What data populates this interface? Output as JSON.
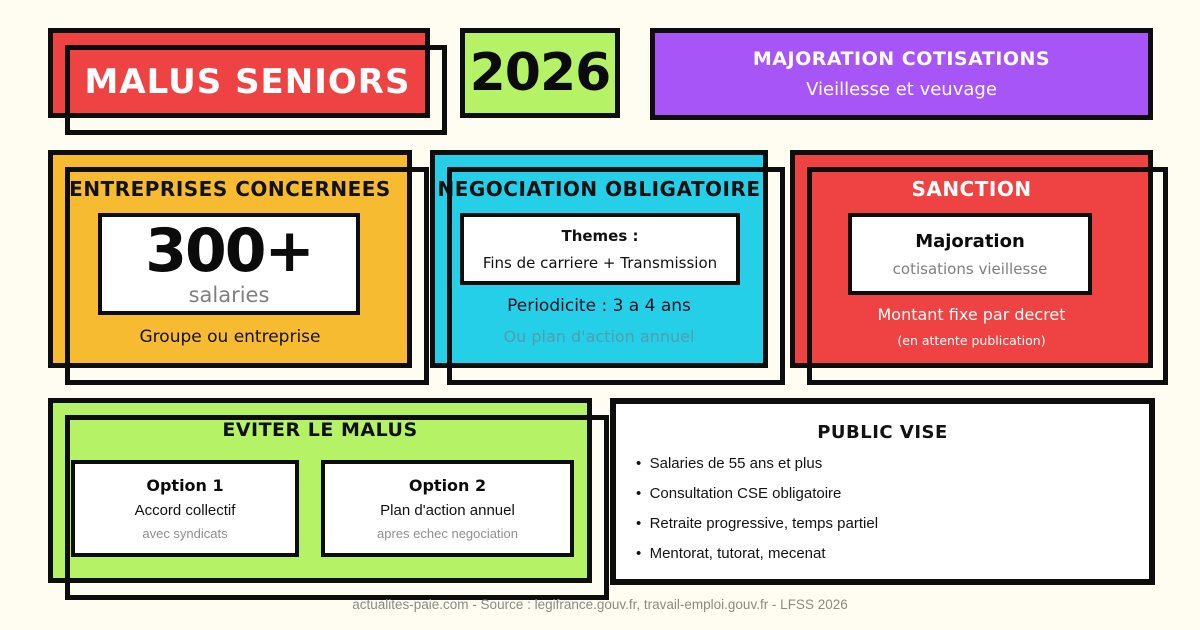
{
  "colors": {
    "background": "#FFFDF1",
    "ink": "#0D0D0D",
    "red": "#EF4343",
    "lime": "#B5F266",
    "purple": "#A855F7",
    "amber": "#F7BB32",
    "cyan": "#26CFE8",
    "card_white": "#FFFFFF",
    "muted_gray": "#7F7F7F",
    "muted_teal": "#4E9FAE",
    "footer_gray": "#8B8B82"
  },
  "header": {
    "title": "MALUS SENIORS",
    "year": "2026",
    "majoration": {
      "title": "MAJORATION COTISATIONS",
      "subtitle": "Vieillesse et veuvage"
    }
  },
  "cards": {
    "entreprises": {
      "title": "ENTREPRISES CONCERNEES",
      "stat_value": "300+",
      "stat_label": "salaries",
      "note": "Groupe ou entreprise"
    },
    "negociation": {
      "title": "NEGOCIATION OBLIGATOIRE",
      "themes_label": "Themes :",
      "themes_value": "Fins de carriere + Transmission",
      "periodicite": "Periodicite : 3 a 4 ans",
      "alternative": "Ou plan d'action annuel"
    },
    "sanction": {
      "title": "SANCTION",
      "box_title": "Majoration",
      "box_sub": "cotisations vieillesse",
      "note": "Montant fixe par decret",
      "note_small": "(en attente publication)"
    },
    "eviter": {
      "title": "EVITER LE MALUS",
      "options": [
        {
          "label": "Option 1",
          "line1": "Accord collectif",
          "line2": "avec syndicats"
        },
        {
          "label": "Option 2",
          "line1": "Plan d'action annuel",
          "line2": "apres echec negociation"
        }
      ]
    },
    "public_vise": {
      "title": "PUBLIC VISE",
      "bullets": [
        "Salaries de 55 ans et plus",
        "Consultation CSE obligatoire",
        "Retraite progressive, temps partiel",
        "Mentorat, tutorat, mecenat"
      ]
    }
  },
  "footer": {
    "text": "actualites-paie.com - Source : legifrance.gouv.fr, travail-emploi.gouv.fr - LFSS 2026"
  }
}
